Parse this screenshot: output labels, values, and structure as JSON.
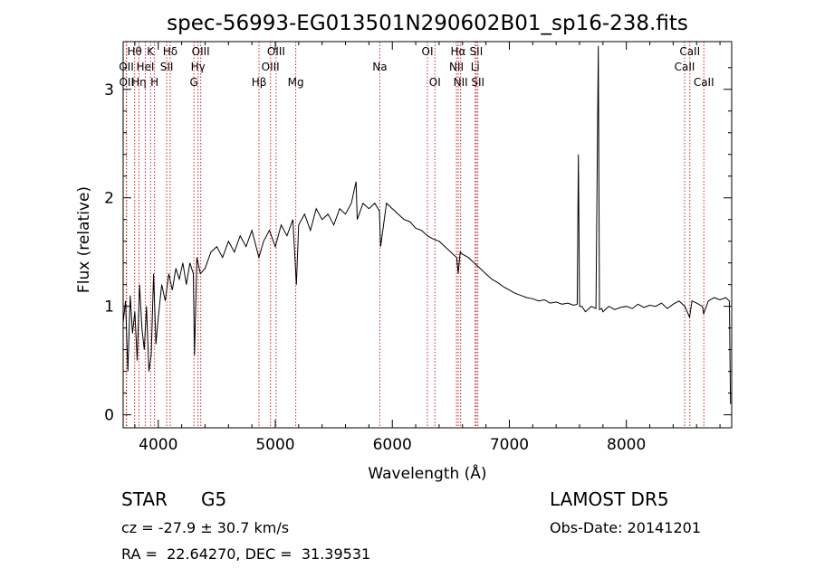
{
  "chart_data": {
    "type": "line",
    "title": "spec-56993-EG013501N290602B01_sp16-238.fits",
    "xlabel": "Wavelength (Å)",
    "ylabel": "Flux (relative)",
    "xlim": [
      3700,
      8900
    ],
    "ylim": [
      -0.12,
      3.44
    ],
    "x_ticks": [
      4000,
      5000,
      6000,
      7000,
      8000
    ],
    "y_ticks": [
      0,
      1,
      2,
      3
    ],
    "grid": false,
    "series": [
      {
        "x": [
          3700,
          3720,
          3740,
          3760,
          3780,
          3800,
          3820,
          3840,
          3860,
          3880,
          3900,
          3920,
          3940,
          3960,
          3980,
          4000,
          4030,
          4060,
          4090,
          4120,
          4150,
          4180,
          4210,
          4240,
          4270,
          4300,
          4310,
          4330,
          4360,
          4400,
          4450,
          4500,
          4550,
          4600,
          4650,
          4700,
          4750,
          4800,
          4860,
          4900,
          4950,
          5000,
          5050,
          5100,
          5150,
          5180,
          5200,
          5250,
          5300,
          5350,
          5400,
          5450,
          5500,
          5550,
          5600,
          5650,
          5690,
          5700,
          5750,
          5800,
          5850,
          5890,
          5900,
          5950,
          6000,
          6050,
          6100,
          6150,
          6200,
          6250,
          6300,
          6350,
          6400,
          6450,
          6500,
          6550,
          6563,
          6580,
          6600,
          6650,
          6700,
          6750,
          6800,
          6850,
          6900,
          6950,
          7000,
          7050,
          7100,
          7150,
          7200,
          7250,
          7300,
          7350,
          7400,
          7450,
          7500,
          7550,
          7580,
          7590,
          7600,
          7620,
          7650,
          7700,
          7740,
          7760,
          7770,
          7790,
          7800,
          7850,
          7900,
          7950,
          8000,
          8050,
          8100,
          8150,
          8200,
          8250,
          8300,
          8350,
          8400,
          8450,
          8500,
          8540,
          8560,
          8600,
          8650,
          8660,
          8700,
          8750,
          8800,
          8850,
          8880,
          8890
        ],
        "y": [
          0.85,
          1.05,
          0.4,
          1.1,
          0.75,
          0.95,
          0.5,
          1.2,
          0.8,
          0.6,
          1.0,
          0.4,
          0.55,
          1.3,
          0.65,
          0.9,
          1.2,
          1.05,
          1.3,
          1.15,
          1.35,
          1.25,
          1.4,
          1.2,
          1.4,
          1.3,
          0.55,
          1.45,
          1.3,
          1.35,
          1.5,
          1.55,
          1.45,
          1.6,
          1.5,
          1.65,
          1.55,
          1.7,
          1.45,
          1.6,
          1.7,
          1.55,
          1.75,
          1.65,
          1.8,
          1.2,
          1.75,
          1.85,
          1.7,
          1.9,
          1.8,
          1.85,
          1.75,
          1.9,
          1.85,
          1.95,
          2.15,
          1.8,
          1.95,
          1.9,
          1.95,
          1.88,
          1.55,
          1.95,
          1.9,
          1.85,
          1.8,
          1.78,
          1.72,
          1.7,
          1.65,
          1.62,
          1.6,
          1.55,
          1.5,
          1.45,
          1.3,
          1.5,
          1.48,
          1.45,
          1.4,
          1.35,
          1.3,
          1.25,
          1.22,
          1.18,
          1.15,
          1.12,
          1.1,
          1.08,
          1.07,
          1.05,
          1.06,
          1.03,
          1.04,
          1.02,
          1.03,
          1.01,
          1.02,
          2.4,
          1.0,
          1.0,
          0.95,
          1.0,
          0.98,
          3.4,
          0.97,
          0.98,
          0.95,
          1.0,
          0.97,
          0.99,
          1.0,
          0.98,
          1.02,
          0.99,
          1.01,
          1.0,
          1.03,
          0.98,
          1.02,
          1.05,
          1.0,
          0.9,
          1.05,
          1.03,
          1.0,
          0.93,
          1.05,
          1.08,
          1.06,
          1.08,
          1.05,
          0.1
        ]
      }
    ],
    "line_markers": [
      {
        "label": "Hθ",
        "wave": 3798,
        "row": 1
      },
      {
        "label": "OII",
        "wave": 3727,
        "row": 2
      },
      {
        "label": "OII",
        "wave": 3729,
        "row": 3
      },
      {
        "label": "Hη",
        "wave": 3835,
        "row": 3
      },
      {
        "label": "K",
        "wave": 3934,
        "row": 1
      },
      {
        "label": "HeI",
        "wave": 3889,
        "row": 2
      },
      {
        "label": "H",
        "wave": 3968,
        "row": 3
      },
      {
        "label": "Hδ",
        "wave": 4102,
        "row": 1
      },
      {
        "label": "SII",
        "wave": 4072,
        "row": 2
      },
      {
        "label": "OIII",
        "wave": 4363,
        "row": 1
      },
      {
        "label": "Hγ",
        "wave": 4340,
        "row": 2
      },
      {
        "label": "G",
        "wave": 4305,
        "row": 3
      },
      {
        "label": "OIII",
        "wave": 5007,
        "row": 1
      },
      {
        "label": "OIII",
        "wave": 4959,
        "row": 2
      },
      {
        "label": "Hβ",
        "wave": 4861,
        "row": 3
      },
      {
        "label": "Mg",
        "wave": 5175,
        "row": 3
      },
      {
        "label": "Na",
        "wave": 5893,
        "row": 2
      },
      {
        "label": "OI",
        "wave": 6300,
        "row": 1
      },
      {
        "label": "OI",
        "wave": 6364,
        "row": 3
      },
      {
        "label": "Hα",
        "wave": 6563,
        "row": 1
      },
      {
        "label": "NII",
        "wave": 6548,
        "row": 2
      },
      {
        "label": "NII",
        "wave": 6584,
        "row": 3
      },
      {
        "label": "SII",
        "wave": 6717,
        "row": 1
      },
      {
        "label": "Li",
        "wave": 6708,
        "row": 2
      },
      {
        "label": "SII",
        "wave": 6731,
        "row": 3
      },
      {
        "label": "CaII",
        "wave": 8542,
        "row": 1
      },
      {
        "label": "CaII",
        "wave": 8498,
        "row": 2
      },
      {
        "label": "CaII",
        "wave": 8662,
        "row": 3
      }
    ]
  },
  "info": {
    "class_label": "STAR",
    "subclass": "G5",
    "survey": "LAMOST DR5",
    "cz_line": "cz = -27.9 ± 30.7 km/s",
    "obs_date_line": "Obs-Date: 20141201",
    "radec_line": "RA =  22.64270, DEC =  31.39531"
  },
  "colors": {
    "spectrum": "#000000",
    "marker_line": "#cc2222",
    "axes": "#000000"
  }
}
